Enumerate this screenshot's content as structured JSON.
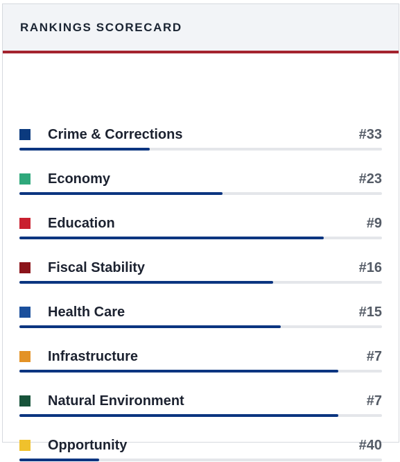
{
  "header": {
    "title": "RANKINGS SCORECARD"
  },
  "scale": {
    "max_rank": 50
  },
  "colors": {
    "bar_fill": "#0b3580",
    "bar_track": "#e4e6ea",
    "header_accent": "#a4232e"
  },
  "items": [
    {
      "label": "Crime & Corrections",
      "rank": "#33",
      "rank_value": 33,
      "swatch": "#0b3a7e",
      "progress": 0.36
    },
    {
      "label": "Economy",
      "rank": "#23",
      "rank_value": 23,
      "swatch": "#2fa87b",
      "progress": 0.56
    },
    {
      "label": "Education",
      "rank": "#9",
      "rank_value": 9,
      "swatch": "#c9202f",
      "progress": 0.84
    },
    {
      "label": "Fiscal Stability",
      "rank": "#16",
      "rank_value": 16,
      "swatch": "#8b141a",
      "progress": 0.7
    },
    {
      "label": "Health Care",
      "rank": "#15",
      "rank_value": 15,
      "swatch": "#1a4f9c",
      "progress": 0.72
    },
    {
      "label": "Infrastructure",
      "rank": "#7",
      "rank_value": 7,
      "swatch": "#e39226",
      "progress": 0.88
    },
    {
      "label": "Natural Environment",
      "rank": "#7",
      "rank_value": 7,
      "swatch": "#17533a",
      "progress": 0.88
    },
    {
      "label": "Opportunity",
      "rank": "#40",
      "rank_value": 40,
      "swatch": "#f0c12c",
      "progress": 0.22
    }
  ]
}
